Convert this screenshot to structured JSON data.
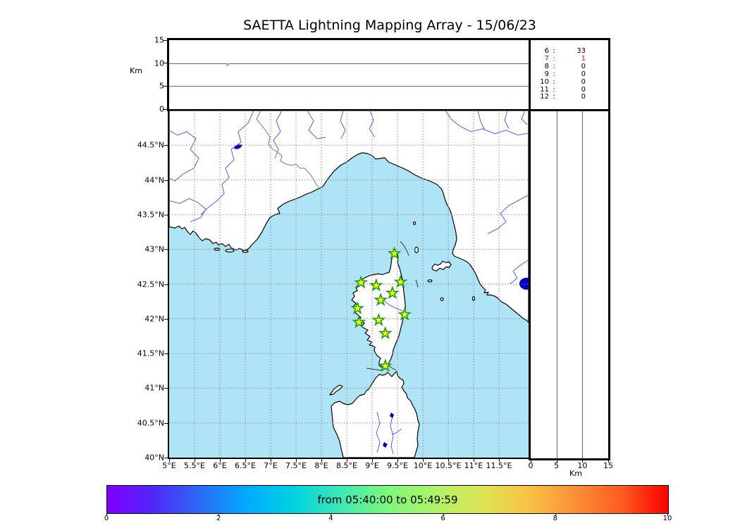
{
  "figure": {
    "title": "SAETTA Lightning Mapping Array - 15/06/23"
  },
  "top_panel": {
    "axis_label": "Km",
    "tick_labels": [
      "0",
      "5",
      "10",
      "15"
    ]
  },
  "station_counts": {
    "rows": [
      [
        "6",
        "33"
      ],
      [
        "7",
        "1"
      ],
      [
        "8",
        "0"
      ],
      [
        "9",
        "0"
      ],
      [
        "10",
        "0"
      ],
      [
        "11",
        "0"
      ],
      [
        "12",
        "0"
      ]
    ],
    "highlight_index": 1
  },
  "map_axes": {
    "lon_tick_labels": [
      "5°E",
      "5.5°E",
      "6°E",
      "6.5°E",
      "7°E",
      "7.5°E",
      "8°E",
      "8.5°E",
      "9°E",
      "9.5°E",
      "10°E",
      "10.5°E",
      "11°E",
      "11.5°E"
    ],
    "lat_tick_labels": [
      "44.5°N",
      "44°N",
      "43.5°N",
      "43°N",
      "42.5°N",
      "42°N",
      "41.5°N",
      "41°N",
      "40.5°N",
      "40°N"
    ]
  },
  "right_panel": {
    "axis_label": "Km",
    "tick_labels": [
      "0",
      "5",
      "10",
      "15"
    ]
  },
  "colorbar": {
    "label": "from 05:40:00 to 05:49:59",
    "tick_labels": [
      "0",
      "2",
      "4",
      "6",
      "8",
      "10"
    ]
  },
  "colors": {
    "sea": "#aee4f6",
    "land": "#ffffff",
    "coast": "#000000",
    "river": "#5b5bf0",
    "country_border": "#777777",
    "lake": "#0000bb",
    "grid": "#8a8a8a",
    "star_fill": "#ffff00",
    "star_stroke": "#1c9a1c",
    "source_dot": "#77e87c",
    "highlight": "#ff0000",
    "rainbow": [
      "#7f00ff",
      "#5028f8",
      "#2a6cf5",
      "#00aaff",
      "#00d2e0",
      "#40e8b4",
      "#7cf87c",
      "#aef266",
      "#dce455",
      "#f8c245",
      "#fb9038",
      "#fd5c20",
      "#ff0000"
    ]
  },
  "chart_data": {
    "type": "scatter",
    "title": "SAETTA Lightning Mapping Array - 15/06/23",
    "time_window": {
      "from": "05:40:00",
      "to": "05:49:59"
    },
    "panels": {
      "altitude_longitude": {
        "ylabel": "Km",
        "ylim": [
          0,
          15
        ],
        "yticks": [
          0,
          5,
          10,
          15
        ],
        "sources": [
          {
            "lon": 6.15,
            "alt_km": 9.6,
            "color": "#77e87c"
          }
        ]
      },
      "map": {
        "lon_range": [
          5,
          12.08
        ],
        "lat_range": [
          40,
          45.0
        ],
        "lon_ticks": [
          5,
          5.5,
          6,
          6.5,
          7,
          7.5,
          8,
          8.5,
          9,
          9.5,
          10,
          10.5,
          11,
          11.5
        ],
        "lat_ticks": [
          44.5,
          44,
          43.5,
          43,
          42.5,
          42,
          41.5,
          41,
          40.5,
          40
        ],
        "stations_lon_lat": [
          [
            9.44,
            42.94
          ],
          [
            8.78,
            42.52
          ],
          [
            9.08,
            42.48
          ],
          [
            9.56,
            42.53
          ],
          [
            9.4,
            42.37
          ],
          [
            9.17,
            42.27
          ],
          [
            8.71,
            42.15
          ],
          [
            9.64,
            42.06
          ],
          [
            9.13,
            41.98
          ],
          [
            8.74,
            41.95
          ],
          [
            9.26,
            41.79
          ],
          [
            9.26,
            41.32
          ]
        ]
      },
      "altitude_latitude": {
        "xlabel": "Km",
        "xlim": [
          0,
          15
        ],
        "xticks": [
          0,
          5,
          10,
          15
        ],
        "sources": []
      }
    },
    "sources_per_station_count": {
      "stations": [
        6,
        7,
        8,
        9,
        10,
        11,
        12
      ],
      "counts": [
        33,
        1,
        0,
        0,
        0,
        0,
        0
      ],
      "highlighted_station": 7
    },
    "colorbar": {
      "label": "from 05:40:00 to 05:49:59",
      "ticks": [
        0,
        2,
        4,
        6,
        8,
        10
      ],
      "colormap": "rainbow"
    }
  }
}
